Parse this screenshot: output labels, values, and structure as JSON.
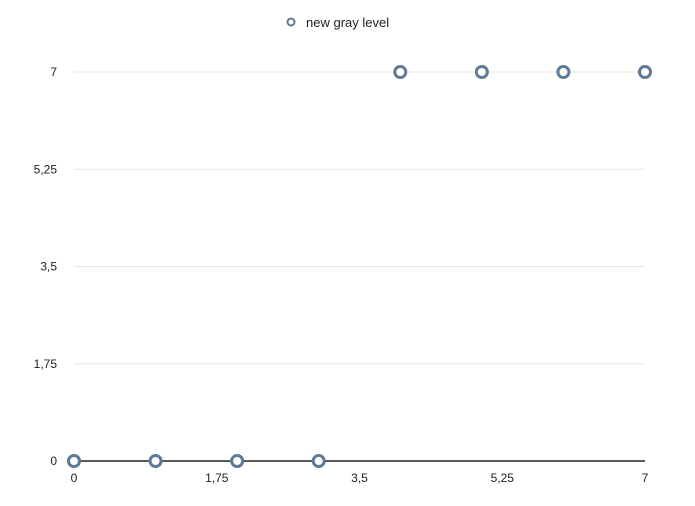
{
  "chart_data": {
    "type": "scatter",
    "title": "",
    "xlabel": "",
    "ylabel": "",
    "xlim": [
      0,
      7
    ],
    "ylim": [
      0,
      7
    ],
    "x_ticks": [
      "0",
      "1,75",
      "3,5",
      "5,25",
      "7"
    ],
    "y_ticks": [
      "0",
      "1,75",
      "3,5",
      "5,25",
      "7"
    ],
    "grid": "horizontal",
    "legend": {
      "position": "top-center",
      "entries": [
        "new gray level"
      ]
    },
    "series": [
      {
        "name": "new gray level",
        "color": "#5e7a96",
        "x": [
          0,
          1,
          2,
          3,
          4,
          5,
          6,
          7
        ],
        "y": [
          0,
          0,
          0,
          0,
          7,
          7,
          7,
          7
        ]
      }
    ]
  }
}
